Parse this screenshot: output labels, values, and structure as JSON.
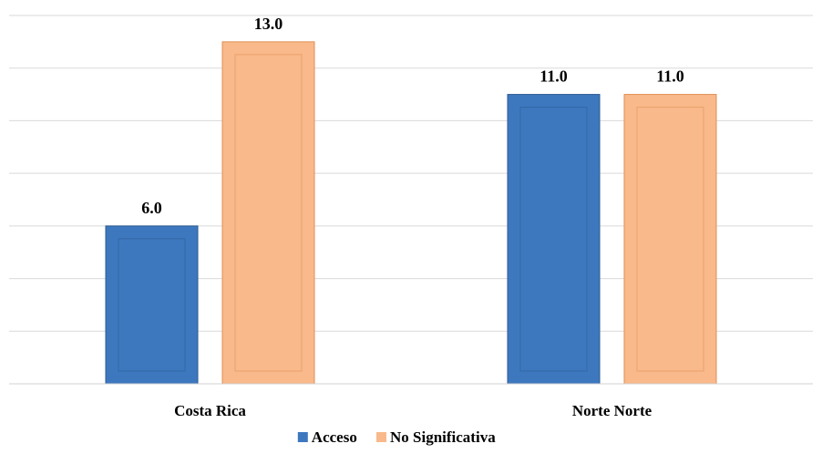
{
  "chart_data": {
    "type": "bar",
    "title": "",
    "xlabel": "",
    "ylabel": "",
    "categories": [
      "Costa Rica",
      "Norte Norte"
    ],
    "series": [
      {
        "name": "Acceso",
        "values": [
          6.0,
          11.0
        ],
        "color": "#3d78bf",
        "edge": "#2e5a90"
      },
      {
        "name": "No Significativa",
        "values": [
          13.0,
          11.0
        ],
        "color": "#f9b98a",
        "edge": "#e08e55"
      }
    ],
    "ylim": [
      0,
      14
    ],
    "gridline_values": [
      0,
      2,
      4,
      6,
      8,
      10,
      12,
      14
    ],
    "y_tick_labels_shown": false,
    "grid": true,
    "value_format": "one_decimal",
    "legend": {
      "position": "bottom-center"
    }
  }
}
